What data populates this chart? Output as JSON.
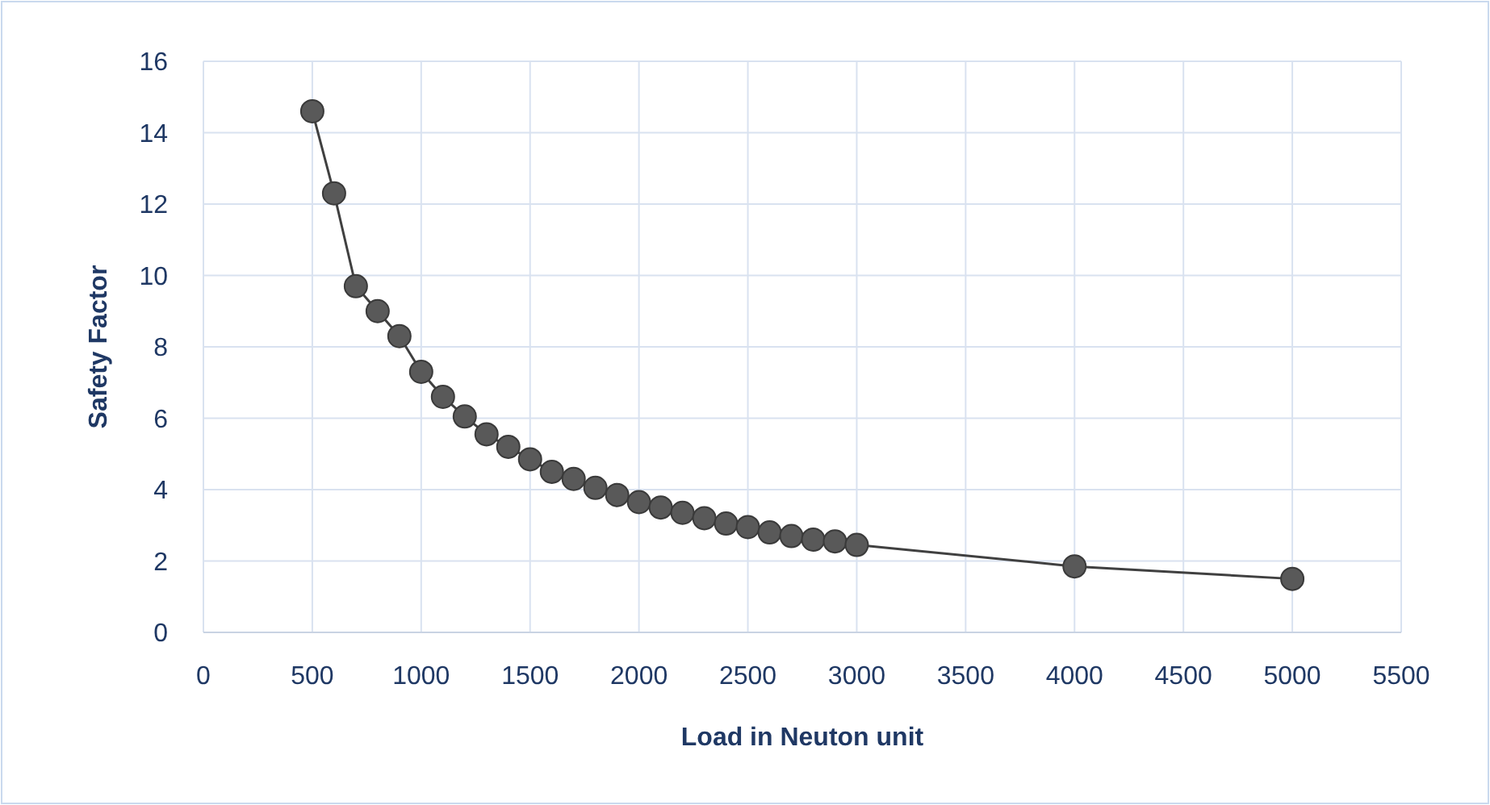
{
  "chart_data": {
    "type": "line",
    "xlabel": "Load in Neuton unit",
    "ylabel": "Safety Factor",
    "x": [
      500,
      600,
      700,
      800,
      900,
      1000,
      1100,
      1200,
      1300,
      1400,
      1500,
      1600,
      1700,
      1800,
      1900,
      2000,
      2100,
      2200,
      2300,
      2400,
      2500,
      2600,
      2700,
      2800,
      2900,
      3000,
      4000,
      5000
    ],
    "series": [
      {
        "color": "#404040",
        "values": [
          14.6,
          12.3,
          9.7,
          9.0,
          8.3,
          7.3,
          6.6,
          6.05,
          5.55,
          5.2,
          4.85,
          4.5,
          4.3,
          4.05,
          3.85,
          3.65,
          3.5,
          3.35,
          3.2,
          3.05,
          2.95,
          2.8,
          2.7,
          2.6,
          2.55,
          2.45,
          1.85,
          1.5
        ]
      }
    ],
    "xlim": [
      0,
      5500
    ],
    "xticks": [
      0,
      500,
      1000,
      1500,
      2000,
      2500,
      3000,
      3500,
      4000,
      4500,
      5000,
      5500
    ],
    "ylim": [
      0,
      16
    ],
    "yticks": [
      0,
      2,
      4,
      6,
      8,
      10,
      12,
      14,
      16
    ],
    "grid": true,
    "marker": "circle",
    "line_style": "solid"
  }
}
